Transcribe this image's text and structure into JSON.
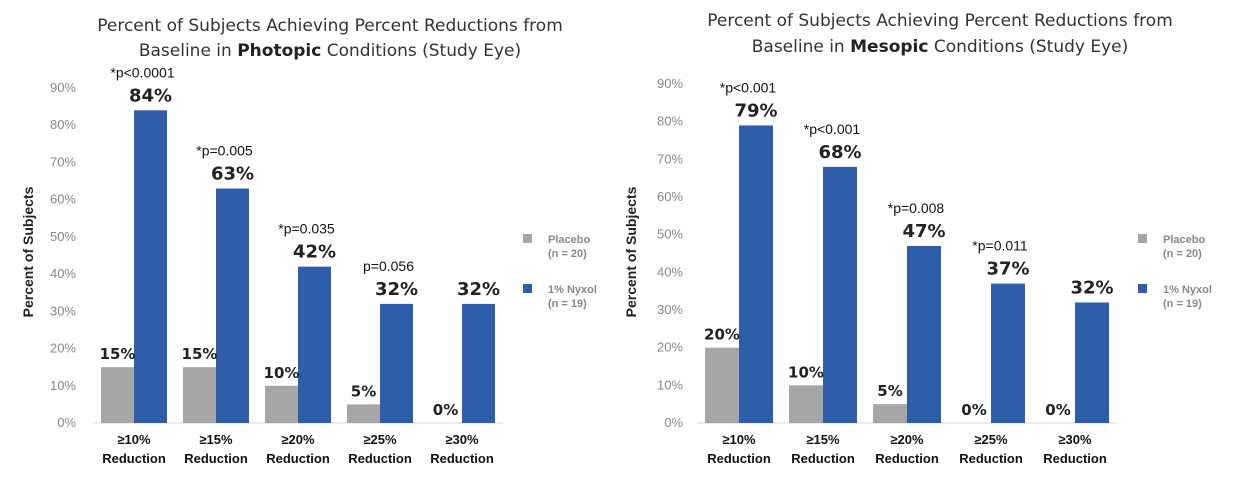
{
  "colors": {
    "placebo": "#A6A6A6",
    "nyxol": "#2E5EAA"
  },
  "chart_data": [
    {
      "type": "bar",
      "title_line1": "Percent of Subjects Achieving Percent Reductions from",
      "title_line2_pre": "Baseline in ",
      "title_line2_bold": "Photopic",
      "title_line2_post": " Conditions (Study Eye)",
      "ylabel": "Percent of Subjects",
      "ylim": [
        0,
        90
      ],
      "yticks": [
        "0%",
        "10%",
        "20%",
        "30%",
        "40%",
        "50%",
        "60%",
        "70%",
        "80%",
        "90%"
      ],
      "categories": [
        [
          "≥10%",
          "Reduction"
        ],
        [
          "≥15%",
          "Reduction"
        ],
        [
          "≥20%",
          "Reduction"
        ],
        [
          "≥25%",
          "Reduction"
        ],
        [
          "≥30%",
          "Reduction"
        ]
      ],
      "series": [
        {
          "name": "Placebo",
          "sub": "(n = 20)",
          "values": [
            15,
            15,
            10,
            5,
            0
          ],
          "labels": [
            "15%",
            "15%",
            "10%",
            "5%",
            "0%"
          ]
        },
        {
          "name": "1% Nyxol",
          "sub": "(n = 19)",
          "values": [
            84,
            63,
            42,
            32,
            32
          ],
          "labels": [
            "84%",
            "63%",
            "42%",
            "32%",
            "32%"
          ]
        }
      ],
      "pvalues": [
        "*p<0.0001",
        "*p=0.005",
        "*p=0.035",
        "p=0.056",
        ""
      ],
      "legend_position": "right",
      "grid": false
    },
    {
      "type": "bar",
      "title_line1": "Percent of Subjects Achieving Percent Reductions from",
      "title_line2_pre": "Baseline in ",
      "title_line2_bold": "Mesopic",
      "title_line2_post": " Conditions (Study Eye)",
      "ylabel": "Percent of Subjects",
      "ylim": [
        0,
        90
      ],
      "yticks": [
        "0%",
        "10%",
        "20%",
        "30%",
        "40%",
        "50%",
        "60%",
        "70%",
        "80%",
        "90%"
      ],
      "categories": [
        [
          "≥10%",
          "Reduction"
        ],
        [
          "≥15%",
          "Reduction"
        ],
        [
          "≥20%",
          "Reduction"
        ],
        [
          "≥25%",
          "Reduction"
        ],
        [
          "≥30%",
          "Reduction"
        ]
      ],
      "series": [
        {
          "name": "Placebo",
          "sub": "(n = 20)",
          "values": [
            20,
            10,
            5,
            0,
            0
          ],
          "labels": [
            "20%",
            "10%",
            "5%",
            "0%",
            "0%"
          ]
        },
        {
          "name": "1% Nyxol",
          "sub": "(n = 19)",
          "values": [
            79,
            68,
            47,
            37,
            32
          ],
          "labels": [
            "79%",
            "68%",
            "47%",
            "37%",
            "32%"
          ]
        }
      ],
      "pvalues": [
        "*p<0.001",
        "*p<0.001",
        "*p=0.008",
        "*p=0.011",
        ""
      ],
      "legend_position": "right",
      "grid": false
    }
  ]
}
